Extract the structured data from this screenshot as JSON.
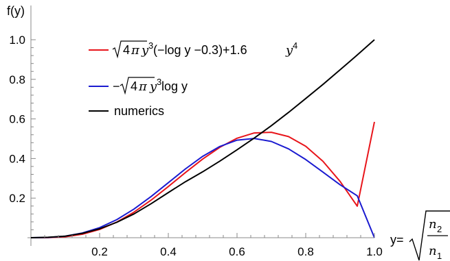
{
  "chart_data": {
    "type": "line",
    "xlabel_prefix": "y=",
    "xlabel_numerator": "n",
    "xlabel_numerator_sub": "2",
    "xlabel_denominator": "n",
    "xlabel_denominator_sub": "1",
    "ylabel": "f(y)",
    "xlim": [
      0.0,
      1.0
    ],
    "ylim": [
      0.0,
      1.0
    ],
    "x_ticks": [
      0.2,
      0.4,
      0.6,
      0.8,
      1.0
    ],
    "x_tick_labels": [
      "0.2",
      "0.4",
      "0.6",
      "0.8",
      "1.0"
    ],
    "y_ticks": [
      0.2,
      0.4,
      0.6,
      0.8,
      1.0
    ],
    "y_tick_labels": [
      "0.2",
      "0.4",
      "0.6",
      "0.8",
      "1.0"
    ],
    "grid": false,
    "legend_position": "top-left",
    "legend": [
      {
        "series": 0,
        "parts": [
          "4",
          "π",
          "y",
          "3",
          "(−log y −0.3)+1.6 ",
          "y",
          "4"
        ]
      },
      {
        "series": 1,
        "parts": [
          "−",
          "4",
          "π",
          "y",
          "3",
          " log y"
        ]
      },
      {
        "series": 2,
        "text": "numerics"
      }
    ],
    "series": [
      {
        "color": "#e8141a",
        "x": [
          0.0,
          0.05,
          0.1,
          0.15,
          0.2,
          0.25,
          0.3,
          0.35,
          0.4,
          0.45,
          0.5,
          0.55,
          0.6,
          0.65,
          0.7,
          0.75,
          0.8,
          0.85,
          0.9,
          0.95,
          1.0
        ],
        "y": [
          0.0,
          0.0004,
          0.0049,
          0.0176,
          0.0418,
          0.079,
          0.1291,
          0.1901,
          0.2584,
          0.3293,
          0.3973,
          0.4568,
          0.5023,
          0.5289,
          0.5326,
          0.5107,
          0.4619,
          0.3861,
          0.2845,
          0.1596,
          0.585
        ]
      },
      {
        "color": "#1a1ad0",
        "x": [
          0.0,
          0.05,
          0.1,
          0.15,
          0.2,
          0.25,
          0.3,
          0.35,
          0.4,
          0.45,
          0.5,
          0.55,
          0.6,
          0.65,
          0.7,
          0.75,
          0.8,
          0.85,
          0.9,
          0.95,
          1.0
        ],
        "y": [
          0.0,
          0.0013,
          0.0081,
          0.0239,
          0.051,
          0.0914,
          0.1448,
          0.2082,
          0.2778,
          0.3477,
          0.411,
          0.461,
          0.4926,
          0.5014,
          0.4862,
          0.4489,
          0.3948,
          0.3314,
          0.2674,
          0.2118,
          0.0
        ]
      },
      {
        "color": "#000000",
        "x": [
          0.0,
          0.05,
          0.1,
          0.15,
          0.2,
          0.25,
          0.3,
          0.35,
          0.4,
          0.45,
          0.5,
          0.55,
          0.6,
          0.65,
          0.7,
          0.75,
          0.8,
          0.85,
          0.9,
          0.95,
          1.0
        ],
        "y": [
          0.0,
          0.002,
          0.008,
          0.022,
          0.045,
          0.078,
          0.12,
          0.172,
          0.228,
          0.283,
          0.333,
          0.387,
          0.444,
          0.503,
          0.566,
          0.633,
          0.703,
          0.774,
          0.848,
          0.923,
          1.0
        ]
      }
    ]
  }
}
